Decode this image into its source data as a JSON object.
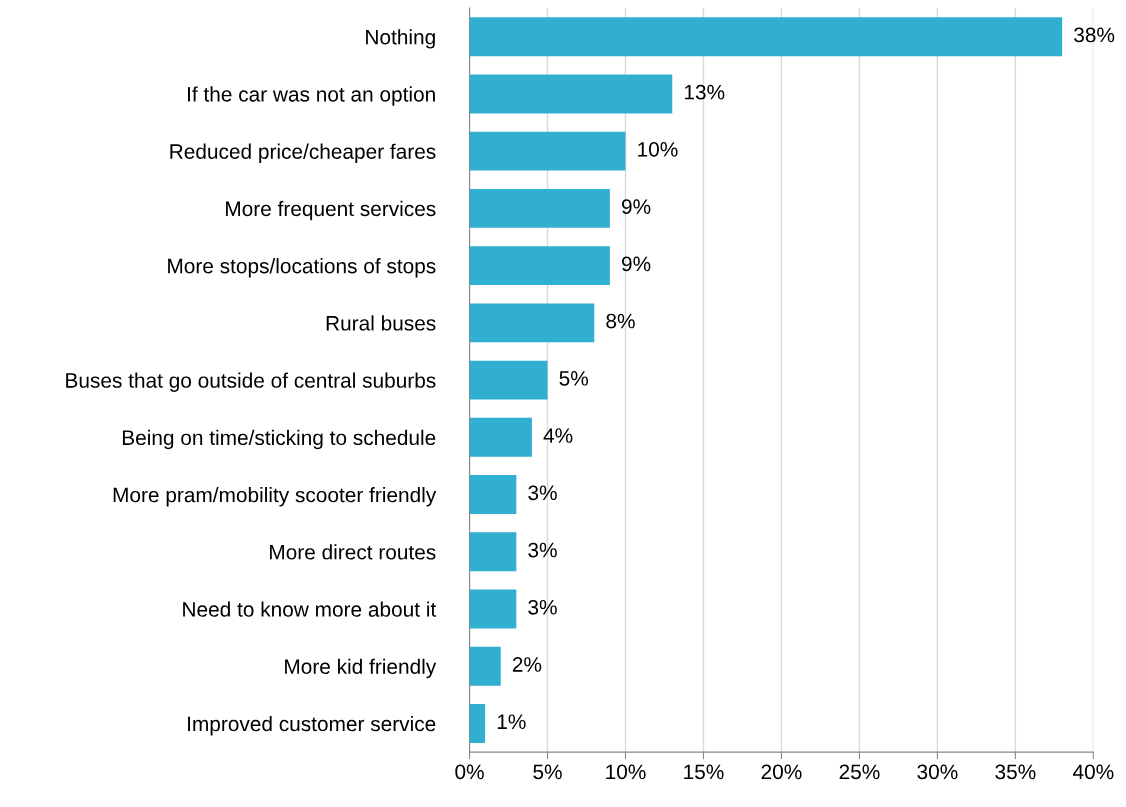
{
  "chart_data": {
    "type": "bar",
    "orientation": "horizontal",
    "categories": [
      "Nothing",
      "If the car was not an option",
      "Reduced price/cheaper fares",
      "More frequent services",
      "More stops/locations of stops",
      "Rural buses",
      "Buses that go outside of central suburbs",
      "Being on time/sticking to schedule",
      "More pram/mobility scooter friendly",
      "More direct routes",
      "Need to know more about it",
      "More kid friendly",
      "Improved customer service"
    ],
    "values": [
      38,
      13,
      10,
      9,
      9,
      8,
      5,
      4,
      3,
      3,
      3,
      2,
      1
    ],
    "value_labels": [
      "38%",
      "13%",
      "10%",
      "9%",
      "9%",
      "8%",
      "5%",
      "4%",
      "3%",
      "3%",
      "3%",
      "2%",
      "1%"
    ],
    "color": "#31afd0",
    "xlim": [
      0,
      40
    ],
    "xticks": [
      {
        "value": 0,
        "label": "0%"
      },
      {
        "value": 5,
        "label": "5%"
      },
      {
        "value": 10,
        "label": "10%"
      },
      {
        "value": 15,
        "label": "15%"
      },
      {
        "value": 20,
        "label": "20%"
      },
      {
        "value": 25,
        "label": "25%"
      },
      {
        "value": 30,
        "label": "30%"
      },
      {
        "value": 35,
        "label": "35%"
      },
      {
        "value": 40,
        "label": "40%"
      }
    ],
    "grid": "x",
    "legend": false
  }
}
